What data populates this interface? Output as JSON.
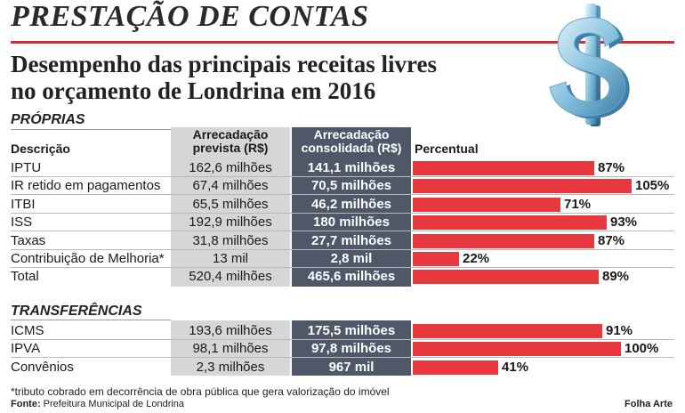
{
  "kicker": "PRESTAÇÃO DE CONTAS",
  "title_line1": "Desempenho das principais receitas livres",
  "title_line2": "no orçamento de Londrina em 2016",
  "columns": {
    "descricao": "Descrição",
    "prevista_line1": "Arrecadação",
    "prevista_line2": "prevista (R$)",
    "consolidada_line1": "Arrecadação",
    "consolidada_line2": "consolidada (R$)",
    "percentual": "Percentual"
  },
  "chart_data": {
    "type": "bar",
    "orientation": "horizontal",
    "value_unit": "%",
    "sections": [
      {
        "name": "PRÓPRIAS",
        "rows": [
          {
            "descricao": "IPTU",
            "prevista": "162,6 milhões",
            "consolidada": "141,1 milhões",
            "percentual": 87,
            "label": "87%"
          },
          {
            "descricao": "IR retido em pagamentos",
            "prevista": "67,4 milhões",
            "consolidada": "70,5 milhões",
            "percentual": 105,
            "label": "105%"
          },
          {
            "descricao": "ITBI",
            "prevista": "65,5 milhões",
            "consolidada": "46,2 milhões",
            "percentual": 71,
            "label": "71%"
          },
          {
            "descricao": "ISS",
            "prevista": "192,9 milhões",
            "consolidada": "180 milhões",
            "percentual": 93,
            "label": "93%"
          },
          {
            "descricao": "Taxas",
            "prevista": "31,8 milhões",
            "consolidada": "27,7 milhões",
            "percentual": 87,
            "label": "87%"
          },
          {
            "descricao": "Contribuição de Melhoria*",
            "prevista": "13 mil",
            "consolidada": "2,8 mil",
            "percentual": 22,
            "label": "22%"
          },
          {
            "descricao": "Total",
            "prevista": "520,4 milhões",
            "consolidada": "465,6 milhões",
            "percentual": 89,
            "label": "89%"
          }
        ]
      },
      {
        "name": "TRANSFERÊNCIAS",
        "rows": [
          {
            "descricao": "ICMS",
            "prevista": "193,6 milhões",
            "consolidada": "175,5 milhões",
            "percentual": 91,
            "label": "91%"
          },
          {
            "descricao": "IPVA",
            "prevista": "98,1 milhões",
            "consolidada": "97,8 milhões",
            "percentual": 100,
            "label": "100%"
          },
          {
            "descricao": "Convênios",
            "prevista": "2,3 milhões",
            "consolidada": "967 mil",
            "percentual": 41,
            "label": "41%"
          }
        ]
      }
    ]
  },
  "footnote": "*tributo cobrado em decorrência de obra pública que gera valorização do imóvel",
  "source_label": "Fonte:",
  "source_text": "Prefeitura Municipal de Londrina",
  "credit": "Folha Arte",
  "icon": "dollar-sign-icon",
  "colors": {
    "accent_red": "#e8373d",
    "consolidated_bg": "#4e5868",
    "prevista_bg": "#d6d6d8"
  }
}
